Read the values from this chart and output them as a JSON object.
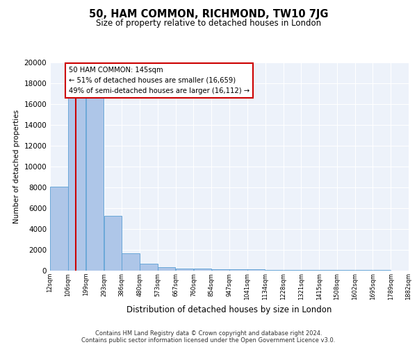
{
  "title1": "50, HAM COMMON, RICHMOND, TW10 7JG",
  "title2": "Size of property relative to detached houses in London",
  "xlabel": "Distribution of detached houses by size in London",
  "ylabel": "Number of detached properties",
  "bar_values": [
    8050,
    16650,
    16650,
    5300,
    1700,
    700,
    320,
    220,
    170,
    130,
    120,
    110,
    100,
    80,
    70,
    60,
    60,
    50,
    40,
    30
  ],
  "bin_edges": [
    12,
    106,
    199,
    293,
    386,
    480,
    573,
    667,
    760,
    854,
    947,
    1041,
    1134,
    1228,
    1321,
    1415,
    1508,
    1602,
    1695,
    1789,
    1882
  ],
  "tick_labels": [
    "12sqm",
    "106sqm",
    "199sqm",
    "293sqm",
    "386sqm",
    "480sqm",
    "573sqm",
    "667sqm",
    "760sqm",
    "854sqm",
    "947sqm",
    "1041sqm",
    "1134sqm",
    "1228sqm",
    "1321sqm",
    "1415sqm",
    "1508sqm",
    "1602sqm",
    "1695sqm",
    "1789sqm",
    "1882sqm"
  ],
  "bar_color": "#aec6e8",
  "bar_edge_color": "#5a9fd4",
  "vline_x": 145,
  "vline_color": "#cc0000",
  "annotation_text": "50 HAM COMMON: 145sqm\n← 51% of detached houses are smaller (16,659)\n49% of semi-detached houses are larger (16,112) →",
  "annotation_box_color": "#ffffff",
  "annotation_box_edge": "#cc0000",
  "ylim": [
    0,
    20000
  ],
  "yticks": [
    0,
    2000,
    4000,
    6000,
    8000,
    10000,
    12000,
    14000,
    16000,
    18000,
    20000
  ],
  "footer1": "Contains HM Land Registry data © Crown copyright and database right 2024.",
  "footer2": "Contains public sector information licensed under the Open Government Licence v3.0.",
  "bg_color": "#edf2fa",
  "grid_color": "#ffffff"
}
